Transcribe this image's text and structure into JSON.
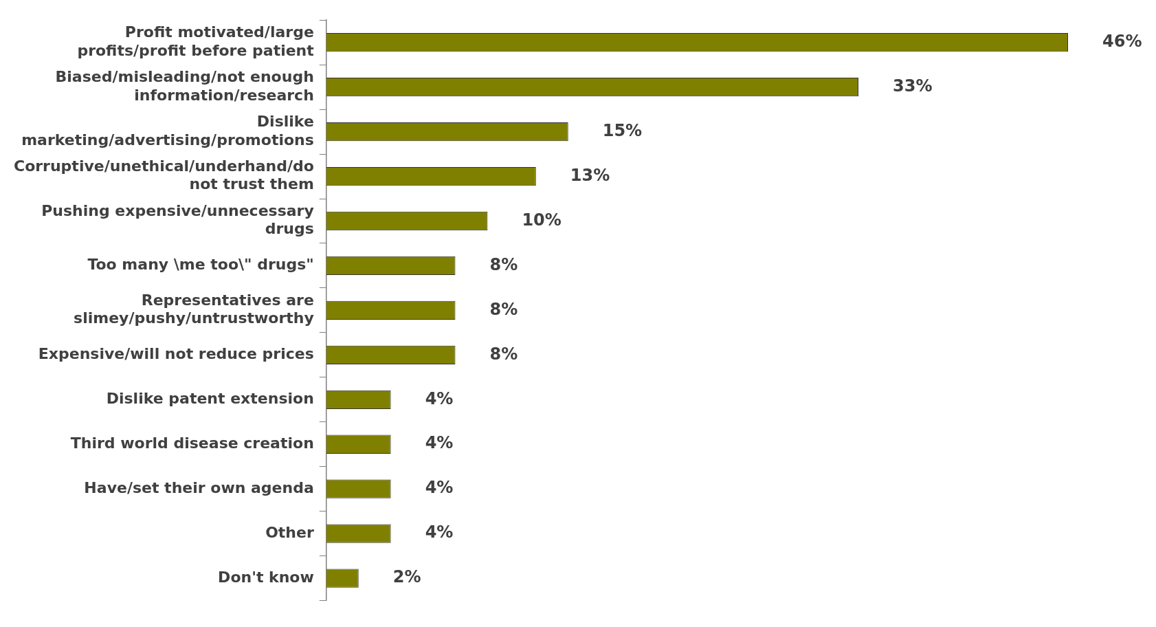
{
  "chart_data": {
    "type": "bar",
    "orientation": "horizontal",
    "relative": false,
    "grid": false,
    "legend": false,
    "categories": [
      "Profit motivated/large profits/profit before patient",
      "Biased/misleading/not enough information/research",
      "Dislike marketing/advertising/promotions",
      "Corruptive/unethical/underhand/do not trust them",
      "Pushing expensive/unnecessary drugs",
      "Too many \\me too\\\" drugs\"",
      "Representatives are slimey/pushy/untrustworthy",
      "Expensive/will not reduce prices",
      "Dislike patent extension",
      "Third world disease creation",
      "Have/set their own agenda",
      "Other",
      "Don't know"
    ],
    "values": [
      46,
      33,
      15,
      13,
      10,
      8,
      8,
      8,
      4,
      4,
      4,
      4,
      2
    ],
    "value_labels": [
      "46%",
      "33%",
      "15%",
      "13%",
      "10%",
      "8%",
      "8%",
      "8%",
      "4%",
      "4%",
      "4%",
      "4%",
      "2%"
    ],
    "color": "#808000"
  }
}
